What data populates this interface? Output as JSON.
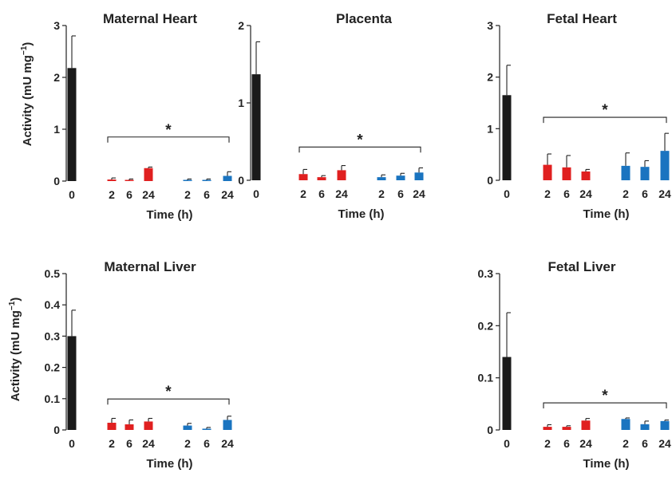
{
  "figure": {
    "ylabel_main": "Activity (mU mg",
    "ylabel_sup": "−1",
    "ylabel_close": ")",
    "significance": "*"
  },
  "colors": {
    "control": "#1a1a1a",
    "red_group": "#e02020",
    "blue_group": "#1a74c0",
    "axis": "#222222"
  },
  "chart_data": [
    {
      "id": "maternal-heart",
      "type": "bar",
      "title": "Maternal Heart",
      "xlabel": "Time (h)",
      "ylabel": "Activity (mU mg−1)",
      "ylim": [
        0,
        3
      ],
      "yticks": [
        0,
        1,
        2,
        3
      ],
      "yticklabels": [
        "0",
        "1",
        "2",
        "3"
      ],
      "categories": [
        "0",
        "2",
        "6",
        "24",
        "2",
        "6",
        "24"
      ],
      "groups": [
        "control",
        "red_group",
        "red_group",
        "red_group",
        "blue_group",
        "blue_group",
        "blue_group"
      ],
      "values": [
        2.18,
        0.03,
        0.02,
        0.25,
        0.02,
        0.02,
        0.1
      ],
      "errors": [
        0.62,
        0.03,
        0.02,
        0.02,
        0.02,
        0.02,
        0.08
      ],
      "bracket": {
        "from": 1,
        "to": 6,
        "y": 0.85,
        "label": "*"
      }
    },
    {
      "id": "placenta",
      "type": "bar",
      "title": "Placenta",
      "xlabel": "Time (h)",
      "ylabel": "",
      "ylim": [
        0,
        2
      ],
      "yticks": [
        0,
        1,
        2
      ],
      "yticklabels": [
        "0",
        "1",
        "2"
      ],
      "categories": [
        "0",
        "2",
        "6",
        "24",
        "2",
        "6",
        "24"
      ],
      "groups": [
        "control",
        "red_group",
        "red_group",
        "red_group",
        "blue_group",
        "blue_group",
        "blue_group"
      ],
      "values": [
        1.37,
        0.08,
        0.04,
        0.13,
        0.04,
        0.06,
        0.1
      ],
      "errors": [
        0.42,
        0.06,
        0.02,
        0.06,
        0.03,
        0.03,
        0.06
      ],
      "bracket": {
        "from": 1,
        "to": 6,
        "y": 0.43,
        "label": "*"
      }
    },
    {
      "id": "fetal-heart",
      "type": "bar",
      "title": "Fetal Heart",
      "xlabel": "Time (h)",
      "ylabel": "",
      "ylim": [
        0,
        3
      ],
      "yticks": [
        0,
        1,
        2,
        3
      ],
      "yticklabels": [
        "0",
        "1",
        "2",
        "3"
      ],
      "categories": [
        "0",
        "2",
        "6",
        "24",
        "2",
        "6",
        "24"
      ],
      "groups": [
        "control",
        "red_group",
        "red_group",
        "red_group",
        "blue_group",
        "blue_group",
        "blue_group"
      ],
      "values": [
        1.65,
        0.3,
        0.25,
        0.17,
        0.28,
        0.26,
        0.57
      ],
      "errors": [
        0.58,
        0.21,
        0.23,
        0.04,
        0.25,
        0.12,
        0.34
      ],
      "bracket": {
        "from": 1,
        "to": 6,
        "y": 1.22,
        "label": "*"
      }
    },
    {
      "id": "maternal-liver",
      "type": "bar",
      "title": "Maternal Liver",
      "xlabel": "Time (h)",
      "ylabel": "Activity (mU mg−1)",
      "ylim": [
        0,
        0.5
      ],
      "yticks": [
        0,
        0.1,
        0.2,
        0.3,
        0.4,
        0.5
      ],
      "yticklabels": [
        "0",
        "0.1",
        "0.2",
        "0.3",
        "0.4",
        "0.5"
      ],
      "categories": [
        "0",
        "2",
        "6",
        "24",
        "2",
        "6",
        "24"
      ],
      "groups": [
        "control",
        "red_group",
        "red_group",
        "red_group",
        "blue_group",
        "blue_group",
        "blue_group"
      ],
      "values": [
        0.3,
        0.023,
        0.018,
        0.027,
        0.014,
        0.004,
        0.032
      ],
      "errors": [
        0.083,
        0.014,
        0.014,
        0.01,
        0.007,
        0.004,
        0.012
      ],
      "bracket": {
        "from": 1,
        "to": 6,
        "y": 0.099,
        "label": "*"
      }
    },
    {
      "id": "fetal-liver",
      "type": "bar",
      "title": "Fetal Liver",
      "xlabel": "Time (h)",
      "ylabel": "",
      "ylim": [
        0,
        0.3
      ],
      "yticks": [
        0,
        0.1,
        0.2,
        0.3
      ],
      "yticklabels": [
        "0",
        "0.1",
        "0.2",
        "0.3"
      ],
      "categories": [
        "0",
        "2",
        "6",
        "24",
        "2",
        "6",
        "24"
      ],
      "groups": [
        "control",
        "red_group",
        "red_group",
        "red_group",
        "blue_group",
        "blue_group",
        "blue_group"
      ],
      "values": [
        0.14,
        0.006,
        0.006,
        0.018,
        0.021,
        0.011,
        0.017
      ],
      "errors": [
        0.085,
        0.004,
        0.002,
        0.004,
        0.002,
        0.006,
        0.002
      ],
      "bracket": {
        "from": 1,
        "to": 6,
        "y": 0.052,
        "label": "*"
      }
    }
  ]
}
